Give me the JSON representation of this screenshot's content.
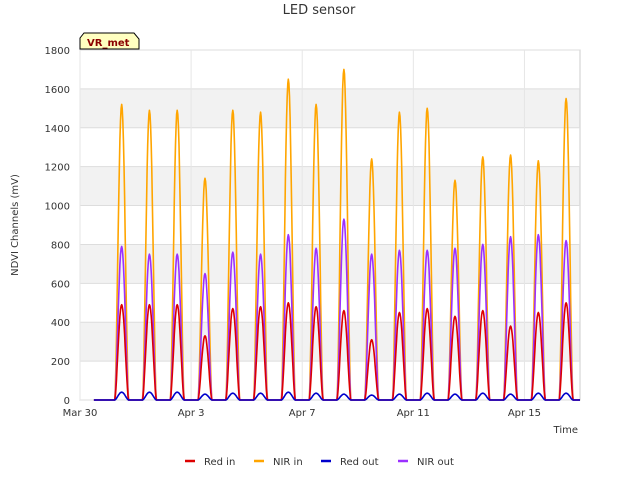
{
  "chart_data": {
    "type": "line",
    "title": "LED sensor",
    "site_label": "VR_met",
    "xlabel": "Time",
    "ylabel": "NDVI Channels (mV)",
    "ylim": [
      0,
      1800
    ],
    "yticks": [
      0,
      200,
      400,
      600,
      800,
      1000,
      1200,
      1400,
      1600,
      1800
    ],
    "xlim": [
      "2024-03-30",
      "2024-04-17"
    ],
    "xticks": [
      {
        "date": "2024-03-30",
        "label": "Mar 30"
      },
      {
        "date": "2024-04-03",
        "label": "Apr 3"
      },
      {
        "date": "2024-04-07",
        "label": "Apr 7"
      },
      {
        "date": "2024-04-11",
        "label": "Apr 11"
      },
      {
        "date": "2024-04-15",
        "label": "Apr 15"
      }
    ],
    "grid": true,
    "legend_position": "bottom",
    "days": [
      "2024-03-31",
      "2024-04-01",
      "2024-04-02",
      "2024-04-03",
      "2024-04-04",
      "2024-04-05",
      "2024-04-06",
      "2024-04-07",
      "2024-04-08",
      "2024-04-09",
      "2024-04-10",
      "2024-04-11",
      "2024-04-12",
      "2024-04-13",
      "2024-04-14",
      "2024-04-15",
      "2024-04-16"
    ],
    "series": [
      {
        "name": "Red in",
        "color": "#dd0000",
        "daily_peak": [
          490,
          490,
          490,
          330,
          470,
          480,
          500,
          480,
          460,
          310,
          450,
          470,
          430,
          460,
          380,
          450,
          500
        ]
      },
      {
        "name": "NIR in",
        "color": "#ffa500",
        "daily_peak": [
          1520,
          1490,
          1490,
          1140,
          1490,
          1480,
          1650,
          1520,
          1700,
          1240,
          1480,
          1500,
          1130,
          1250,
          1260,
          1230,
          1550
        ]
      },
      {
        "name": "Red out",
        "color": "#0000cc",
        "daily_peak": [
          40,
          40,
          40,
          30,
          35,
          35,
          40,
          35,
          30,
          25,
          30,
          35,
          30,
          35,
          30,
          35,
          35
        ]
      },
      {
        "name": "NIR out",
        "color": "#9b30ff",
        "daily_peak": [
          790,
          750,
          750,
          650,
          760,
          750,
          850,
          780,
          930,
          750,
          770,
          770,
          780,
          800,
          840,
          850,
          820
        ]
      }
    ]
  }
}
